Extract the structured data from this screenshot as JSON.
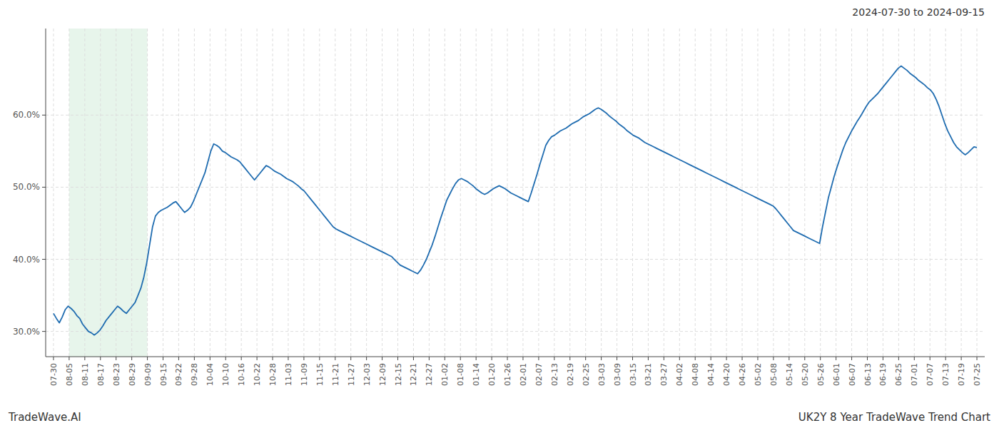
{
  "chart_data": {
    "type": "line",
    "title": "2024-07-30 to 2024-09-15",
    "annotations": [
      "TradeWave.AI",
      "UK2Y 8 Year TradeWave Trend Chart"
    ],
    "color": "#1f6cb0",
    "grid": true,
    "span": {
      "x": [
        1,
        6
      ],
      "color": "#d4edda"
    },
    "xlim": [
      -0.5,
      59.5
    ],
    "xticks": [
      {
        "value": 0,
        "label": "07-30"
      },
      {
        "value": 1,
        "label": "08-05"
      },
      {
        "value": 2,
        "label": "08-11"
      },
      {
        "value": 3,
        "label": "08-17"
      },
      {
        "value": 4,
        "label": "08-23"
      },
      {
        "value": 5,
        "label": "08-29"
      },
      {
        "value": 6,
        "label": "09-09"
      },
      {
        "value": 7,
        "label": "09-15"
      },
      {
        "value": 8,
        "label": "09-22"
      },
      {
        "value": 9,
        "label": "09-28"
      },
      {
        "value": 10,
        "label": "10-04"
      },
      {
        "value": 11,
        "label": "10-10"
      },
      {
        "value": 12,
        "label": "10-16"
      },
      {
        "value": 13,
        "label": "10-22"
      },
      {
        "value": 14,
        "label": "10-28"
      },
      {
        "value": 15,
        "label": "11-03"
      },
      {
        "value": 16,
        "label": "11-09"
      },
      {
        "value": 17,
        "label": "11-15"
      },
      {
        "value": 18,
        "label": "11-21"
      },
      {
        "value": 19,
        "label": "11-27"
      },
      {
        "value": 20,
        "label": "12-03"
      },
      {
        "value": 21,
        "label": "12-09"
      },
      {
        "value": 22,
        "label": "12-15"
      },
      {
        "value": 23,
        "label": "12-21"
      },
      {
        "value": 24,
        "label": "12-27"
      },
      {
        "value": 25,
        "label": "01-02"
      },
      {
        "value": 26,
        "label": "01-08"
      },
      {
        "value": 27,
        "label": "01-14"
      },
      {
        "value": 28,
        "label": "01-20"
      },
      {
        "value": 29,
        "label": "01-26"
      },
      {
        "value": 30,
        "label": "02-01"
      },
      {
        "value": 31,
        "label": "02-07"
      },
      {
        "value": 32,
        "label": "02-13"
      },
      {
        "value": 33,
        "label": "02-19"
      },
      {
        "value": 34,
        "label": "02-25"
      },
      {
        "value": 35,
        "label": "03-03"
      },
      {
        "value": 36,
        "label": "03-09"
      },
      {
        "value": 37,
        "label": "03-15"
      },
      {
        "value": 38,
        "label": "03-21"
      },
      {
        "value": 39,
        "label": "03-27"
      },
      {
        "value": 40,
        "label": "04-02"
      },
      {
        "value": 41,
        "label": "04-08"
      },
      {
        "value": 42,
        "label": "04-14"
      },
      {
        "value": 43,
        "label": "04-20"
      },
      {
        "value": 44,
        "label": "04-26"
      },
      {
        "value": 45,
        "label": "05-02"
      },
      {
        "value": 46,
        "label": "05-08"
      },
      {
        "value": 47,
        "label": "05-14"
      },
      {
        "value": 48,
        "label": "05-20"
      },
      {
        "value": 49,
        "label": "05-26"
      },
      {
        "value": 50,
        "label": "06-01"
      },
      {
        "value": 51,
        "label": "06-07"
      },
      {
        "value": 52,
        "label": "06-13"
      },
      {
        "value": 53,
        "label": "06-19"
      },
      {
        "value": 54,
        "label": "06-25"
      },
      {
        "value": 55,
        "label": "07-01"
      },
      {
        "value": 56,
        "label": "07-07"
      },
      {
        "value": 57,
        "label": "07-13"
      },
      {
        "value": 58,
        "label": "07-19"
      },
      {
        "value": 59,
        "label": "07-25"
      }
    ],
    "ylim": [
      0.265,
      0.72
    ],
    "yticks": [
      {
        "value": 0.3,
        "label": "30.0%"
      },
      {
        "value": 0.4,
        "label": "40.0%"
      },
      {
        "value": 0.5,
        "label": "50.0%"
      },
      {
        "value": 0.6,
        "label": "60.0%"
      }
    ],
    "values": [
      0.325,
      0.318,
      0.312,
      0.32,
      0.33,
      0.335,
      0.332,
      0.328,
      0.322,
      0.318,
      0.31,
      0.305,
      0.3,
      0.298,
      0.295,
      0.298,
      0.302,
      0.308,
      0.315,
      0.32,
      0.325,
      0.33,
      0.335,
      0.332,
      0.328,
      0.325,
      0.33,
      0.335,
      0.34,
      0.35,
      0.36,
      0.375,
      0.395,
      0.42,
      0.445,
      0.46,
      0.465,
      0.468,
      0.47,
      0.472,
      0.475,
      0.478,
      0.48,
      0.475,
      0.47,
      0.465,
      0.468,
      0.472,
      0.48,
      0.49,
      0.5,
      0.51,
      0.52,
      0.535,
      0.55,
      0.56,
      0.558,
      0.555,
      0.55,
      0.548,
      0.545,
      0.542,
      0.54,
      0.538,
      0.535,
      0.53,
      0.525,
      0.52,
      0.515,
      0.51,
      0.515,
      0.52,
      0.525,
      0.53,
      0.528,
      0.525,
      0.522,
      0.52,
      0.518,
      0.515,
      0.512,
      0.51,
      0.508,
      0.505,
      0.502,
      0.498,
      0.495,
      0.49,
      0.485,
      0.48,
      0.475,
      0.47,
      0.465,
      0.46,
      0.455,
      0.45,
      0.445,
      0.442,
      0.44,
      0.438,
      0.436,
      0.434,
      0.432,
      0.43,
      0.428,
      0.426,
      0.424,
      0.422,
      0.42,
      0.418,
      0.416,
      0.414,
      0.412,
      0.41,
      0.408,
      0.406,
      0.404,
      0.4,
      0.396,
      0.392,
      0.39,
      0.388,
      0.386,
      0.384,
      0.382,
      0.38,
      0.385,
      0.392,
      0.4,
      0.41,
      0.42,
      0.432,
      0.445,
      0.458,
      0.47,
      0.482,
      0.49,
      0.498,
      0.505,
      0.51,
      0.512,
      0.51,
      0.508,
      0.505,
      0.502,
      0.498,
      0.495,
      0.492,
      0.49,
      0.492,
      0.495,
      0.498,
      0.5,
      0.502,
      0.5,
      0.498,
      0.495,
      0.492,
      0.49,
      0.488,
      0.486,
      0.484,
      0.482,
      0.48,
      0.492,
      0.505,
      0.518,
      0.532,
      0.545,
      0.558,
      0.565,
      0.57,
      0.572,
      0.575,
      0.578,
      0.58,
      0.582,
      0.585,
      0.588,
      0.59,
      0.592,
      0.595,
      0.598,
      0.6,
      0.602,
      0.605,
      0.608,
      0.61,
      0.608,
      0.605,
      0.602,
      0.598,
      0.595,
      0.592,
      0.588,
      0.585,
      0.582,
      0.578,
      0.575,
      0.572,
      0.57,
      0.568,
      0.565,
      0.562,
      0.56,
      0.558,
      0.556,
      0.554,
      0.552,
      0.55,
      0.548,
      0.546,
      0.544,
      0.542,
      0.54,
      0.538,
      0.536,
      0.534,
      0.532,
      0.53,
      0.528,
      0.526,
      0.524,
      0.522,
      0.52,
      0.518,
      0.516,
      0.514,
      0.512,
      0.51,
      0.508,
      0.506,
      0.504,
      0.502,
      0.5,
      0.498,
      0.496,
      0.494,
      0.492,
      0.49,
      0.488,
      0.486,
      0.484,
      0.482,
      0.48,
      0.478,
      0.476,
      0.474,
      0.47,
      0.465,
      0.46,
      0.455,
      0.45,
      0.445,
      0.44,
      0.438,
      0.436,
      0.434,
      0.432,
      0.43,
      0.428,
      0.426,
      0.424,
      0.422,
      0.445,
      0.465,
      0.485,
      0.5,
      0.515,
      0.528,
      0.54,
      0.552,
      0.562,
      0.57,
      0.578,
      0.585,
      0.592,
      0.598,
      0.605,
      0.612,
      0.618,
      0.622,
      0.626,
      0.63,
      0.635,
      0.64,
      0.645,
      0.65,
      0.655,
      0.66,
      0.665,
      0.668,
      0.665,
      0.662,
      0.658,
      0.655,
      0.652,
      0.648,
      0.645,
      0.642,
      0.638,
      0.635,
      0.63,
      0.622,
      0.612,
      0.6,
      0.588,
      0.578,
      0.57,
      0.562,
      0.556,
      0.552,
      0.548,
      0.545,
      0.548,
      0.552,
      0.556,
      0.555
    ]
  }
}
